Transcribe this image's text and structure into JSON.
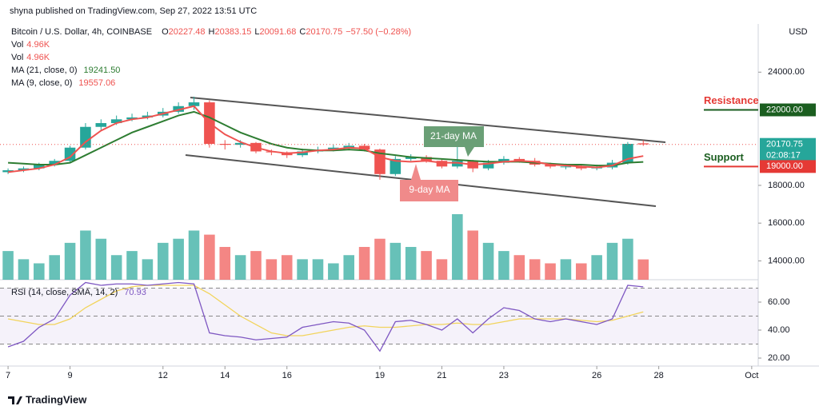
{
  "header": "shyna published on TradingView.com, Sep 27, 2022 13:51 UTC",
  "footer": "TradingView",
  "chart_data": [
    {
      "type": "candlestick",
      "title": "Bitcoin / U.S. Dollar, 4h, COINBASE",
      "ohlc_legend": [
        {
          "label": "O",
          "value": 20227.48
        },
        {
          "label": "H",
          "value": 20383.15
        },
        {
          "label": "L",
          "value": 20091.68
        },
        {
          "label": "C",
          "value": 20170.75
        }
      ],
      "change": "−57.50 (−0.28%)",
      "currency": "USD",
      "x": [
        7,
        7.5,
        8,
        8.5,
        9,
        9.5,
        10,
        10.5,
        11,
        11.5,
        12,
        12.5,
        13,
        13.5,
        14,
        14.5,
        15,
        15.5,
        16,
        16.5,
        17,
        17.5,
        18,
        18.5,
        19,
        19.5,
        20,
        20.5,
        21,
        21.5,
        22,
        22.5,
        23,
        23.5,
        24,
        24.5,
        25,
        25.5,
        26,
        26.5,
        27,
        27.5
      ],
      "open": [
        18700,
        18800,
        18900,
        19100,
        19300,
        20000,
        21100,
        21300,
        21500,
        21600,
        21700,
        21900,
        22200,
        22400,
        20200,
        20150,
        20250,
        19800,
        19750,
        19600,
        19800,
        19900,
        20000,
        20100,
        19900,
        18600,
        19400,
        19500,
        19300,
        19000,
        19300,
        18900,
        19200,
        19400,
        19300,
        19100,
        19000,
        19000,
        18900,
        18950,
        19200,
        20227.48
      ],
      "high": [
        18900,
        19000,
        19200,
        19400,
        20100,
        21300,
        21500,
        21700,
        21800,
        21900,
        22100,
        22400,
        22700,
        22500,
        20400,
        20400,
        20300,
        19900,
        19800,
        19950,
        20050,
        20150,
        20250,
        20200,
        19950,
        19550,
        19650,
        19600,
        19400,
        20400,
        19350,
        19350,
        19550,
        19500,
        19450,
        19200,
        19150,
        19100,
        19100,
        19350,
        20300,
        20383.15
      ],
      "low": [
        18600,
        18700,
        18800,
        19000,
        19200,
        19900,
        20900,
        21200,
        21400,
        21500,
        21600,
        21800,
        22000,
        20000,
        19900,
        20000,
        19700,
        19600,
        19450,
        19500,
        19700,
        19800,
        19900,
        19800,
        18300,
        18500,
        19300,
        19200,
        18900,
        18900,
        18700,
        18800,
        19100,
        19200,
        19000,
        18900,
        18850,
        18800,
        18800,
        18850,
        19100,
        20091.68
      ],
      "close": [
        18800,
        18900,
        19100,
        19300,
        20000,
        21100,
        21300,
        21500,
        21600,
        21700,
        21900,
        22200,
        22400,
        20200,
        20150,
        20250,
        19800,
        19750,
        19600,
        19800,
        19900,
        20000,
        20100,
        19900,
        18600,
        19400,
        19500,
        19300,
        19000,
        19300,
        18900,
        19200,
        19400,
        19300,
        19100,
        19000,
        19000,
        18900,
        18950,
        19200,
        20200,
        20170.75
      ],
      "up_color": "#26a69a",
      "down_color": "#ef5350",
      "series": [
        {
          "name": "MA (21, close, 0)",
          "color": "#2e7d32",
          "legend_value": "19241.50",
          "values": [
            19200,
            19150,
            19100,
            19100,
            19200,
            19600,
            20000,
            20400,
            20800,
            21100,
            21400,
            21700,
            21900,
            21600,
            21200,
            20800,
            20500,
            20200,
            20000,
            19900,
            19850,
            19850,
            19900,
            19850,
            19700,
            19600,
            19500,
            19450,
            19400,
            19350,
            19300,
            19250,
            19250,
            19250,
            19200,
            19150,
            19100,
            19100,
            19050,
            19050,
            19200,
            19241.5
          ]
        },
        {
          "name": "MA (9, close, 0)",
          "color": "#ef5350",
          "legend_value": "19557.06",
          "values": [
            18700,
            18800,
            18900,
            19100,
            19500,
            20300,
            20900,
            21300,
            21500,
            21600,
            21800,
            22000,
            22200,
            21300,
            20700,
            20300,
            20000,
            19800,
            19700,
            19750,
            19850,
            19900,
            20000,
            19950,
            19500,
            19300,
            19250,
            19300,
            19200,
            19200,
            19100,
            19150,
            19250,
            19300,
            19250,
            19100,
            19050,
            19000,
            18950,
            19050,
            19400,
            19557.06
          ]
        }
      ],
      "xlim": [
        6.74,
        31.21
      ],
      "xticks": [
        7,
        9,
        12,
        14,
        16,
        19,
        21,
        23,
        26,
        28,
        {
          "value": 31,
          "label": "Oct"
        }
      ],
      "ylim": [
        13000,
        26553
      ],
      "yticks": [
        {
          "value": 14000,
          "label": "14000.00"
        },
        {
          "value": 16000,
          "label": "16000.00"
        },
        {
          "value": 18000,
          "label": "18000.00"
        },
        {
          "value": 24000,
          "label": "24000.00"
        }
      ],
      "last_price": 20170.75,
      "countdown": "02:08:17",
      "levels": [
        {
          "name": "Resistance",
          "value": 22000,
          "label": "22000.00",
          "text_color": "#e53935",
          "color": "#1b5e20"
        },
        {
          "name": "Support",
          "value": 19000,
          "label": "19000.00",
          "text_color": "#1b5e20",
          "color": "#e53935"
        }
      ],
      "annotations": [
        "21-day MA",
        "9-day MA"
      ]
    },
    {
      "type": "bar",
      "title": "Vol",
      "value_label": "4.96K",
      "values": [
        7,
        5,
        4,
        6,
        9,
        12,
        10,
        6,
        7,
        5,
        9,
        10,
        12,
        11,
        8,
        6,
        7,
        5,
        6,
        5,
        5,
        4,
        6,
        8,
        10,
        9,
        8,
        7,
        5,
        16,
        12,
        9,
        7,
        6,
        5,
        4,
        5,
        4,
        6,
        9,
        10,
        4.96
      ],
      "ylim": [
        0,
        62.4
      ]
    },
    {
      "type": "line",
      "title": "RSI (14, close, SMA, 14, 2)",
      "legend_value": "70.93",
      "series": [
        {
          "color": "#7e57c2",
          "values": [
            28,
            32,
            42,
            48,
            65,
            74,
            72,
            73,
            73,
            72,
            73,
            74,
            73,
            38,
            36,
            35,
            33,
            34,
            35,
            42,
            44,
            46,
            45,
            40,
            25,
            46,
            47,
            44,
            40,
            48,
            38,
            48,
            56,
            54,
            48,
            46,
            48,
            46,
            44,
            48,
            72,
            70.93
          ]
        },
        {
          "color": "#f2d45c",
          "values": [
            48,
            46,
            44,
            44,
            48,
            56,
            62,
            68,
            71,
            72,
            72,
            72,
            72,
            66,
            58,
            50,
            44,
            38,
            36,
            36,
            38,
            40,
            42,
            43,
            42,
            42,
            43,
            44,
            44,
            45,
            44,
            44,
            46,
            48,
            48,
            48,
            48,
            47,
            46,
            47,
            50,
            53
          ]
        }
      ],
      "ylim": [
        14.3,
        76
      ],
      "yticks": [
        {
          "value": 60,
          "label": "60.00"
        },
        {
          "value": 40,
          "label": "40.00"
        },
        {
          "value": 20,
          "label": "20.00"
        }
      ],
      "bands": [
        70,
        50,
        30
      ]
    }
  ]
}
